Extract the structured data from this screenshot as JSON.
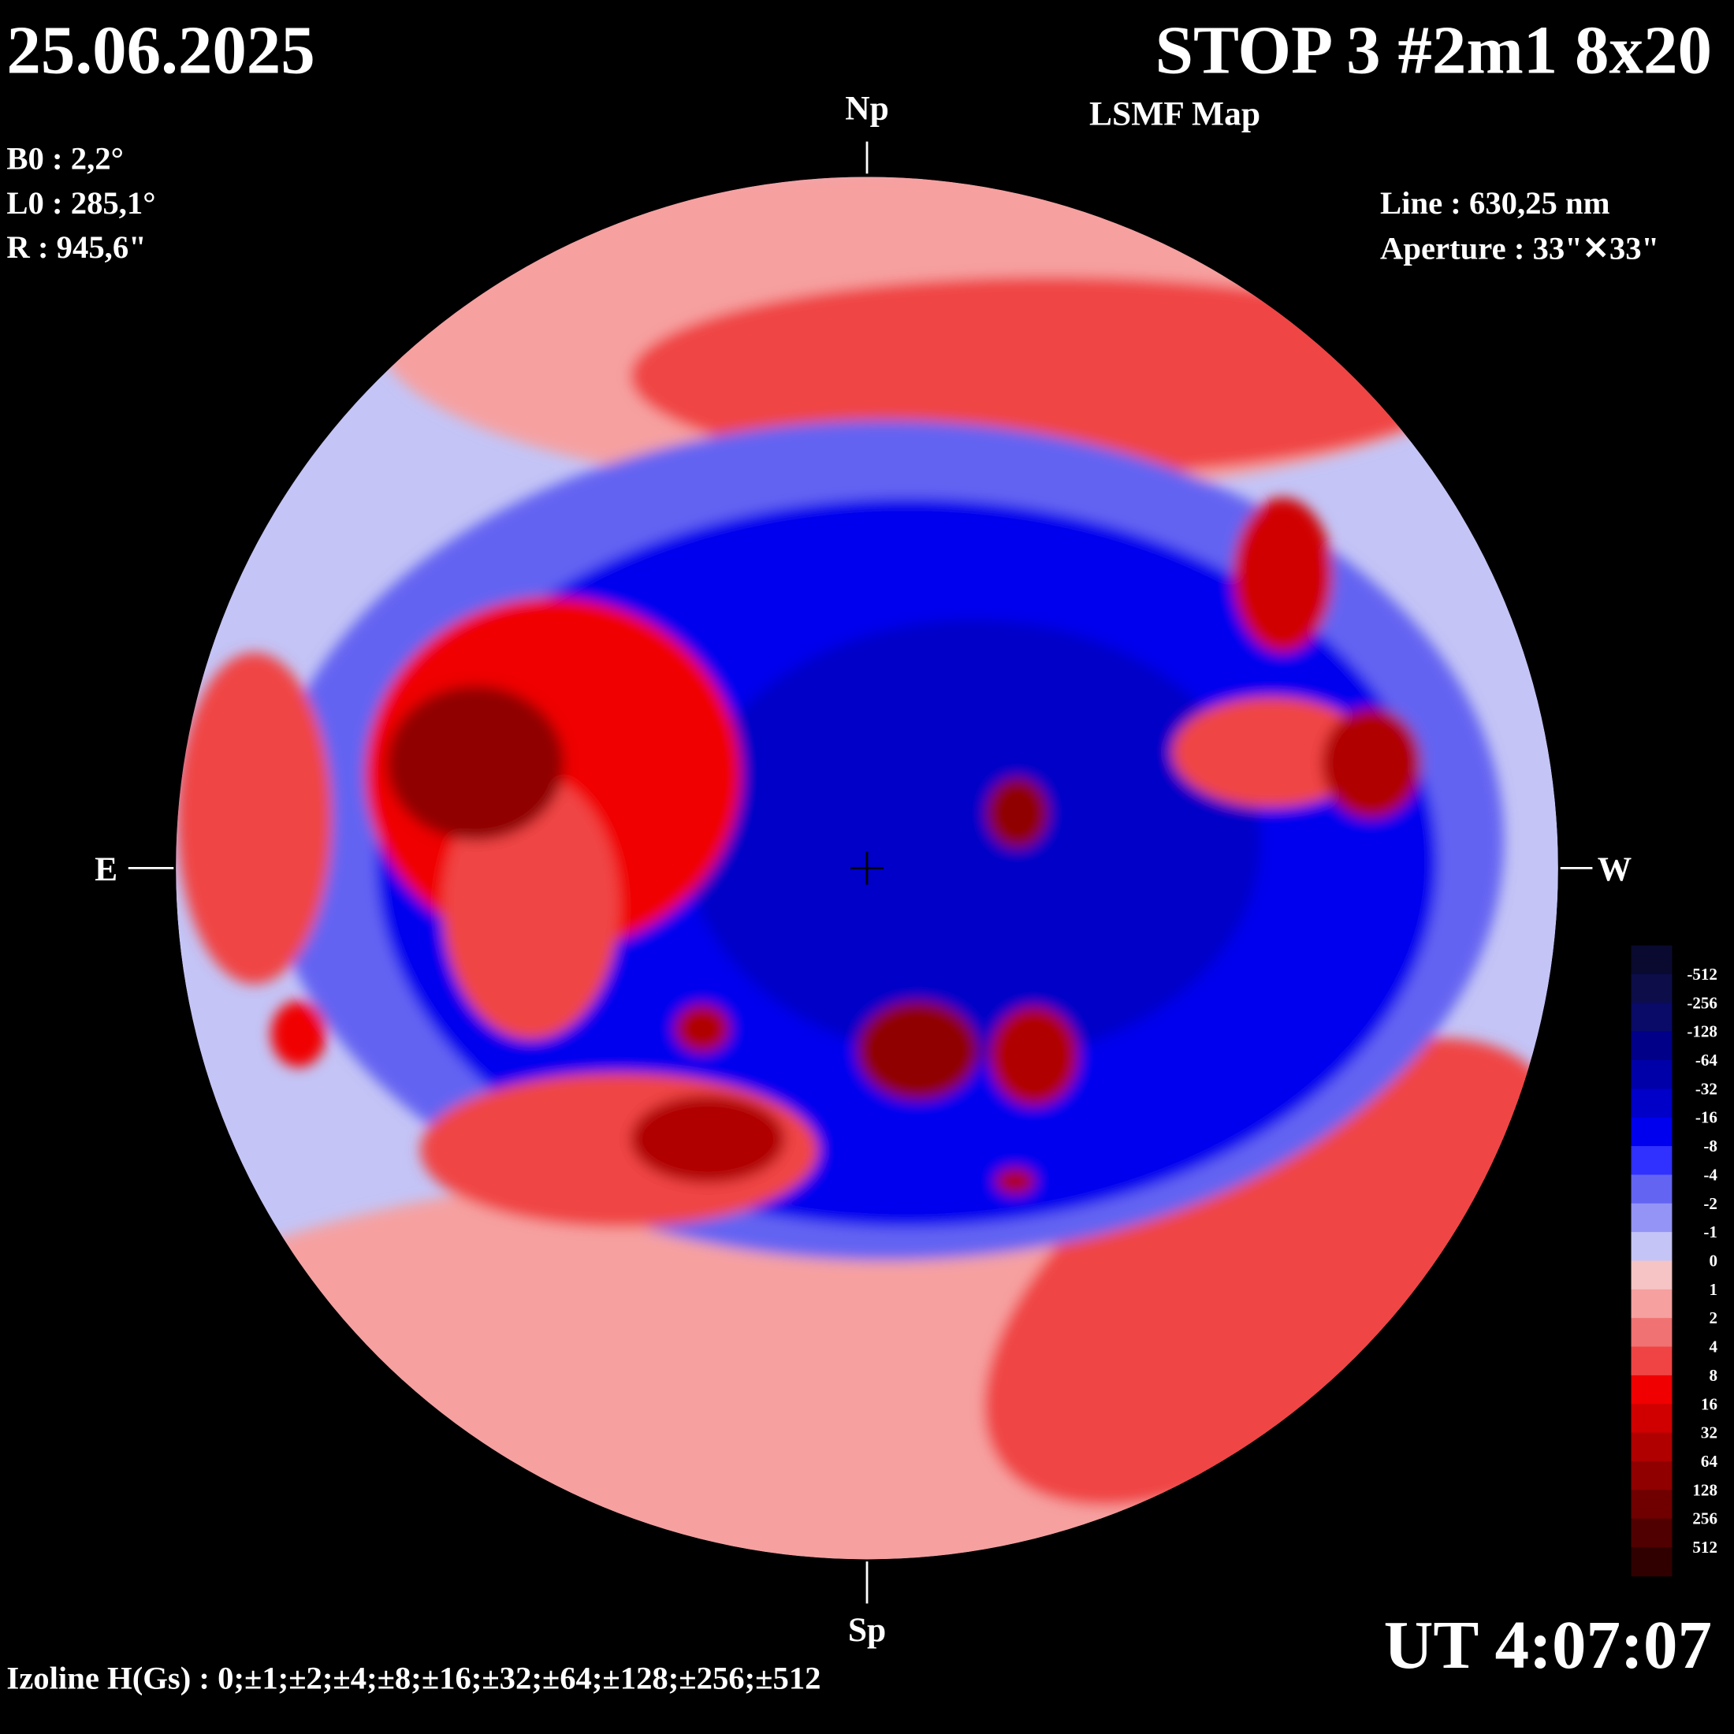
{
  "date": "25.06.2025",
  "title": "STOP 3 #2m1 8x20",
  "subtitle": "LSMF  Map",
  "params": [
    "B0 : 2,2°",
    "L0 : 285,1°",
    "R  : 945,6\""
  ],
  "line": "Line :  630,25 nm",
  "aperture": "Aperture : 33\"✕33\"",
  "directions": {
    "north": "Np",
    "south": "Sp",
    "east": "E",
    "west": "W"
  },
  "time": "UT 4:07:07",
  "izoline": "Izoline H(Gs) : 0;±1;±2;±4;±8;±16;±32;±64;±128;±256;±512",
  "colorbar": {
    "levels": [
      -512,
      -256,
      -128,
      -64,
      -32,
      -16,
      -8,
      -4,
      -2,
      -1,
      0,
      1,
      2,
      4,
      8,
      16,
      32,
      64,
      128,
      256,
      512
    ],
    "colors": [
      "#0a0a30",
      "#0d0d4a",
      "#0a0a68",
      "#000088",
      "#0000a8",
      "#0000c8",
      "#0000ee",
      "#3030ff",
      "#6464f2",
      "#9494f6",
      "#c4c4f6",
      "#f6c4c4",
      "#f6a0a0",
      "#f07272",
      "#f04444",
      "#f00000",
      "#d00000",
      "#b00000",
      "#900000",
      "#700000",
      "#500000",
      "#300000"
    ]
  }
}
